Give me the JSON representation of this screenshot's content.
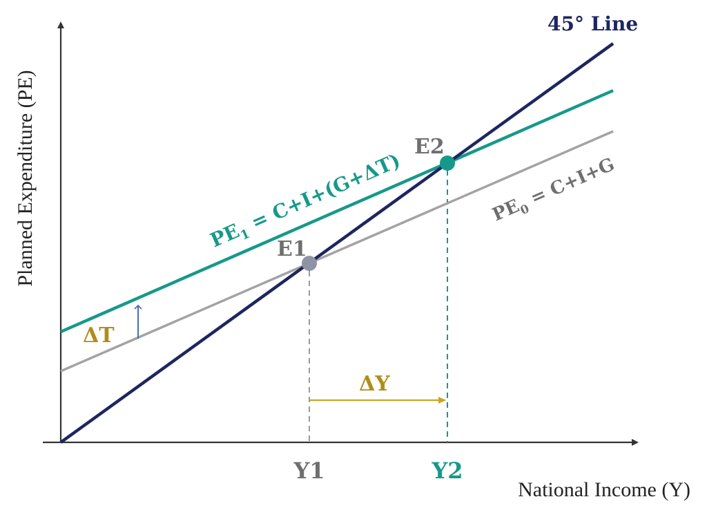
{
  "colors": {
    "axis": "#333333",
    "forty_five": "#1d2660",
    "pe1": "#16998a",
    "pe0": "#a3a3a3",
    "e1_dot": "#8e93a6",
    "e1_text": "#6f6f6f",
    "delta": "#b08d1a",
    "arrow_dt": "#4a6fb5",
    "y2_text": "#16998a"
  },
  "axes": {
    "x_label": "National Income (Y)",
    "y_label": "Planned Expenditure (PE)"
  },
  "lines": {
    "forty_five": {
      "label": "45° Line"
    },
    "pe1": {
      "label_main": "PE",
      "label_sub": "1",
      "label_rest": " = C+I+(G+ΔT)"
    },
    "pe0": {
      "label_main": "PE",
      "label_sub": "0",
      "label_rest": " = C+I+G"
    }
  },
  "points": {
    "e1": "E1",
    "e2": "E2"
  },
  "ticks": {
    "y1": "Y1",
    "y2": "Y2"
  },
  "annotations": {
    "delta_t": "ΔT",
    "delta_y": "ΔY"
  }
}
